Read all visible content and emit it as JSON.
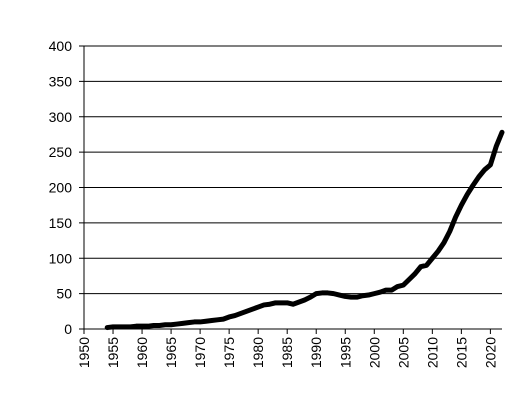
{
  "chart_data": {
    "type": "line",
    "x": [
      1954,
      1955,
      1956,
      1957,
      1958,
      1959,
      1960,
      1961,
      1962,
      1963,
      1964,
      1965,
      1966,
      1967,
      1968,
      1969,
      1970,
      1971,
      1972,
      1973,
      1974,
      1975,
      1976,
      1977,
      1978,
      1979,
      1980,
      1981,
      1982,
      1983,
      1984,
      1985,
      1986,
      1987,
      1988,
      1989,
      1990,
      1991,
      1992,
      1993,
      1994,
      1995,
      1996,
      1997,
      1998,
      1999,
      2000,
      2001,
      2002,
      2003,
      2004,
      2005,
      2006,
      2007,
      2008,
      2009,
      2010,
      2011,
      2012,
      2013,
      2014,
      2015,
      2016,
      2017,
      2018,
      2019,
      2020,
      2021,
      2022
    ],
    "values": [
      2,
      3,
      3,
      3,
      3,
      4,
      4,
      4,
      5,
      5,
      6,
      6,
      7,
      8,
      9,
      10,
      10,
      11,
      12,
      13,
      14,
      17,
      19,
      22,
      25,
      28,
      31,
      34,
      35,
      37,
      37,
      37,
      35,
      38,
      41,
      45,
      50,
      51,
      51,
      50,
      48,
      46,
      45,
      45,
      47,
      48,
      50,
      52,
      55,
      55,
      60,
      62,
      70,
      78,
      88,
      90,
      100,
      110,
      122,
      138,
      158,
      175,
      190,
      203,
      215,
      225,
      232,
      258,
      278
    ],
    "color": "#000000",
    "xlim": [
      1950,
      2022
    ],
    "xticks": [
      1950,
      1955,
      1960,
      1965,
      1970,
      1975,
      1980,
      1985,
      1990,
      1995,
      2000,
      2005,
      2010,
      2015,
      2020
    ],
    "ylim": [
      0,
      400
    ],
    "yticks": [
      0,
      50,
      100,
      150,
      200,
      250,
      300,
      350,
      400
    ],
    "grid": true
  }
}
